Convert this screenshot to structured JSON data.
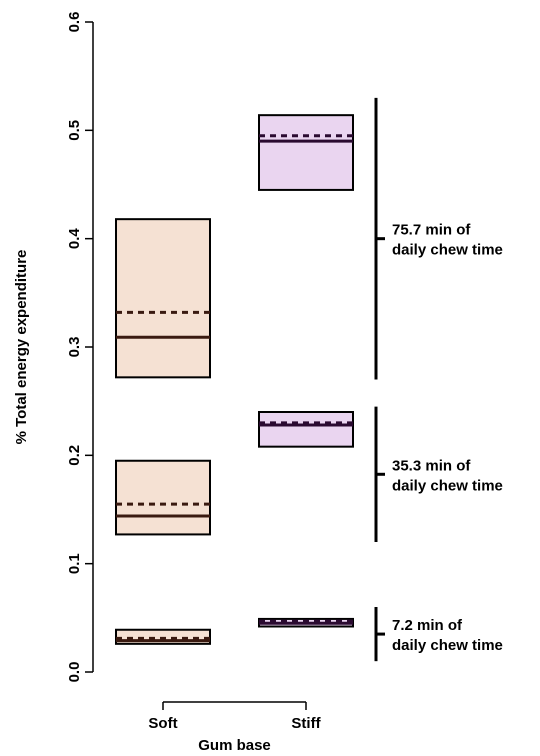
{
  "chart_data": {
    "type": "box",
    "xlabel": "Gum base",
    "ylabel": "% Total energy expenditure",
    "categories": [
      "Soft",
      "Stiff"
    ],
    "ylim": [
      0,
      0.6
    ],
    "yticks": [
      "0.0",
      "0.1",
      "0.2",
      "0.3",
      "0.4",
      "0.5",
      "0.6"
    ],
    "grid": false,
    "colors": {
      "Soft": "#f5e1d3",
      "Stiff": "#ead5f0",
      "Soft_line": "#3a1a10",
      "Stiff_line": "#2a0a30"
    },
    "groups": [
      {
        "annotation": [
          "7.2 min of",
          "daily chew time"
        ],
        "bracket": [
          0.01,
          0.06
        ],
        "boxes": [
          {
            "category": "Soft",
            "low": 0.026,
            "high": 0.039,
            "median": 0.029,
            "mean": 0.031
          },
          {
            "category": "Stiff",
            "low": 0.042,
            "high": 0.049,
            "median": 0.045,
            "mean": 0.047
          }
        ]
      },
      {
        "annotation": [
          "35.3 min of",
          "daily chew time"
        ],
        "bracket": [
          0.12,
          0.245
        ],
        "boxes": [
          {
            "category": "Soft",
            "low": 0.127,
            "high": 0.195,
            "median": 0.144,
            "mean": 0.155
          },
          {
            "category": "Stiff",
            "low": 0.208,
            "high": 0.24,
            "median": 0.228,
            "mean": 0.23
          }
        ]
      },
      {
        "annotation": [
          "75.7 min of",
          "daily chew time"
        ],
        "bracket": [
          0.27,
          0.53
        ],
        "boxes": [
          {
            "category": "Soft",
            "low": 0.272,
            "high": 0.418,
            "median": 0.309,
            "mean": 0.332
          },
          {
            "category": "Stiff",
            "low": 0.445,
            "high": 0.514,
            "median": 0.49,
            "mean": 0.495
          }
        ]
      }
    ]
  }
}
